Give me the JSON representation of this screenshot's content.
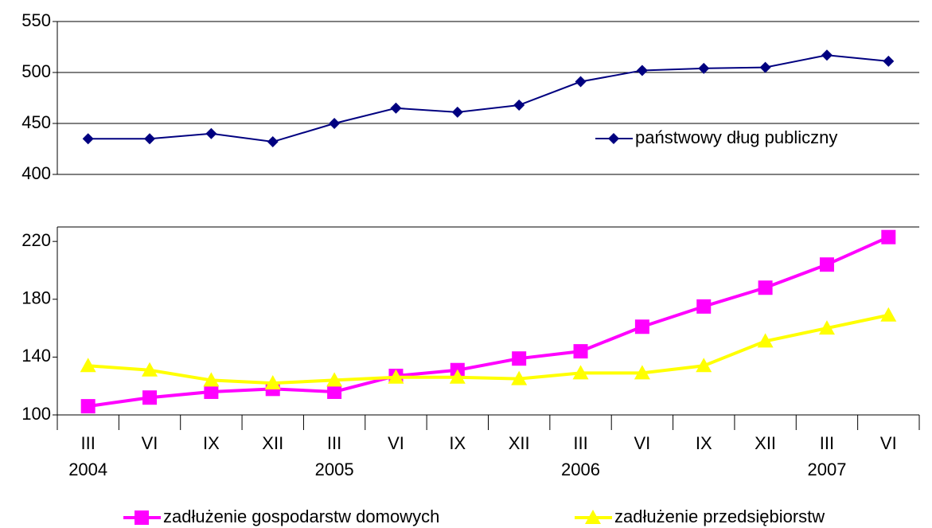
{
  "chart_data": [
    {
      "type": "line",
      "ylim": [
        400,
        550
      ],
      "yticks": [
        400,
        450,
        500,
        550
      ],
      "grid": true,
      "legend": "inside-right",
      "series": [
        {
          "name": "państwowy dług publiczny",
          "color": "#000080",
          "marker": "diamond",
          "values": [
            435,
            435,
            440,
            432,
            450,
            465,
            461,
            468,
            491,
            502,
            504,
            505,
            517,
            511,
            null
          ]
        }
      ]
    },
    {
      "type": "line",
      "ylim": [
        100,
        230
      ],
      "yticks": [
        100,
        140,
        180,
        220
      ],
      "grid": false,
      "legend": "bottom",
      "categories": [
        "III",
        "VI",
        "IX",
        "XII",
        "III",
        "VI",
        "IX",
        "XII",
        "III",
        "VI",
        "IX",
        "XII",
        "III",
        "VI"
      ],
      "years": [
        "2004",
        null,
        null,
        null,
        "2005",
        null,
        null,
        null,
        "2006",
        null,
        null,
        null,
        "2007",
        null
      ],
      "series": [
        {
          "name": "zadłużenie gospodarstw domowych",
          "color": "#ff00ff",
          "marker": "square",
          "values": [
            106,
            112,
            116,
            118,
            116,
            127,
            131,
            139,
            144,
            161,
            175,
            188,
            204,
            223
          ]
        },
        {
          "name": "zadłużenie przedsiębiorstw",
          "color": "#ffff00",
          "marker": "triangle",
          "values": [
            134,
            131,
            124,
            122,
            124,
            126,
            126,
            125,
            129,
            129,
            134,
            151,
            160,
            169
          ]
        }
      ]
    }
  ]
}
